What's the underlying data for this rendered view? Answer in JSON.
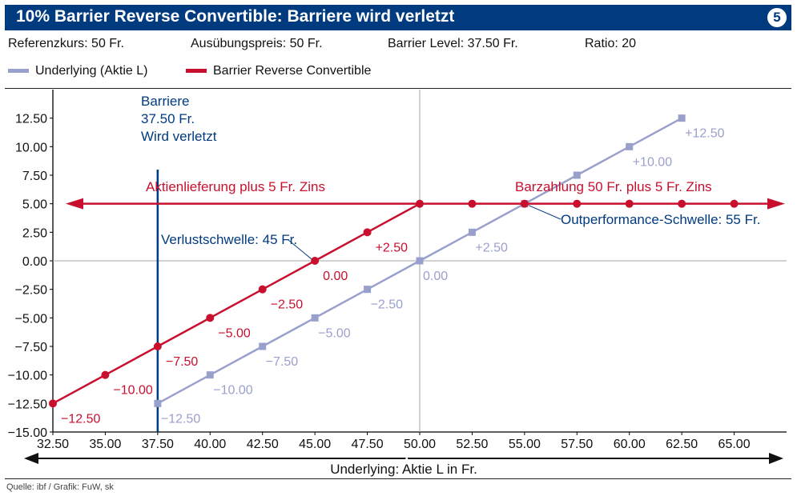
{
  "header": {
    "title": "10% Barrier Reverse Convertible: Barriere wird verletzt",
    "badge": "5"
  },
  "params": {
    "referenzkurs": "Referenzkurs: 50 Fr.",
    "ausuebungspreis": "Ausübungspreis: 50 Fr.",
    "barrier_level": "Barrier Level: 37.50 Fr.",
    "ratio": "Ratio: 20"
  },
  "legend": {
    "underlying": "Underlying (Aktie L)",
    "brc": "Barrier Reverse Convertible"
  },
  "colors": {
    "underlying": "#9aa0cc",
    "brc": "#c8102e",
    "barrier": "#003a7f",
    "grid": "#a6a6a6"
  },
  "chart_data": {
    "type": "line",
    "xlabel": "Underlying: Aktie L in Fr.",
    "ylabel": "",
    "xlim": [
      32.5,
      67.5
    ],
    "ylim": [
      -15,
      15
    ],
    "x_ticks": [
      "32.50",
      "35.00",
      "37.50",
      "40.00",
      "42.50",
      "45.00",
      "47.50",
      "50.00",
      "52.50",
      "55.00",
      "57.50",
      "60.00",
      "62.50",
      "65.00"
    ],
    "y_ticks": [
      "12.50",
      "10.00",
      "7.50",
      "5.00",
      "2.50",
      "0.00",
      "-2.50",
      "-5.00",
      "-7.50",
      "-10.00",
      "-12.50",
      "-15.00"
    ],
    "grid": "vertical line at 50.00, horizontal line at 0.00",
    "series": [
      {
        "name": "Underlying (Aktie L)",
        "x": [
          37.5,
          40,
          42.5,
          45,
          47.5,
          50,
          52.5,
          55,
          57.5,
          60,
          62.5
        ],
        "y": [
          -12.5,
          -10,
          -7.5,
          -5,
          -2.5,
          0,
          2.5,
          5,
          7.5,
          10,
          12.5
        ],
        "labels": [
          {
            "x": 37.5,
            "text": "-12.50"
          },
          {
            "x": 40,
            "text": "-10.00"
          },
          {
            "x": 42.5,
            "text": "-7.50"
          },
          {
            "x": 45,
            "text": "-5.00"
          },
          {
            "x": 47.5,
            "text": "-2.50"
          },
          {
            "x": 50,
            "text": "0.00"
          },
          {
            "x": 52.5,
            "text": "+2.50"
          },
          {
            "x": 60,
            "text": "+10.00"
          },
          {
            "x": 62.5,
            "text": "+12.50"
          }
        ]
      },
      {
        "name": "Barrier Reverse Convertible",
        "x": [
          32.5,
          35,
          37.5,
          40,
          42.5,
          45,
          47.5,
          50,
          52.5,
          55,
          57.5,
          60,
          62.5,
          65
        ],
        "y": [
          -12.5,
          -10,
          -7.5,
          -5,
          -2.5,
          0,
          2.5,
          5,
          5,
          5,
          5,
          5,
          5,
          5
        ],
        "labels": [
          {
            "x": 32.5,
            "text": "-12.50"
          },
          {
            "x": 35,
            "text": "-10.00"
          },
          {
            "x": 37.5,
            "text": "-7.50"
          },
          {
            "x": 40,
            "text": "-5.00"
          },
          {
            "x": 42.5,
            "text": "-2.50"
          },
          {
            "x": 45,
            "text": "0.00"
          },
          {
            "x": 47.5,
            "text": "+2.50"
          }
        ]
      }
    ],
    "barrier": {
      "x": 37.5,
      "label_lines": [
        "Barriere",
        "37.50 Fr.",
        "Wird verletzt"
      ]
    },
    "annotations": {
      "aktienlieferung": "Aktienlieferung plus 5 Fr. Zins",
      "barzahlung": "Barzahlung 50 Fr. plus 5 Fr. Zins",
      "verlustschwelle": "Verlustschwelle: 45 Fr.",
      "outperformance": "Outperformance-Schwelle: 55 Fr."
    }
  },
  "source": "Quelle: ibf / Grafik: FuW, sk"
}
